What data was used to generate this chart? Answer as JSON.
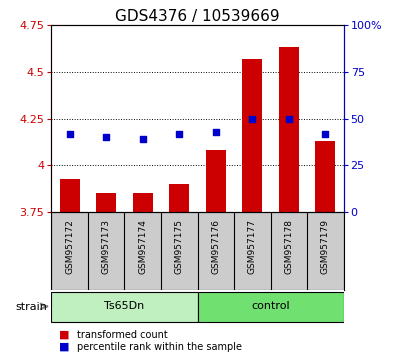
{
  "title": "GDS4376 / 10539669",
  "samples": [
    "GSM957172",
    "GSM957173",
    "GSM957174",
    "GSM957175",
    "GSM957176",
    "GSM957177",
    "GSM957178",
    "GSM957179"
  ],
  "bar_values": [
    3.93,
    3.855,
    3.855,
    3.9,
    4.08,
    4.57,
    4.63,
    4.13
  ],
  "percentile_values": [
    42,
    40,
    39,
    42,
    43,
    50,
    50,
    42
  ],
  "ylim_left": [
    3.75,
    4.75
  ],
  "ylim_right": [
    0,
    100
  ],
  "yticks_left": [
    3.75,
    4.0,
    4.25,
    4.5,
    4.75
  ],
  "ytick_labels_left": [
    "3.75",
    "4",
    "4.25",
    "4.5",
    "4.75"
  ],
  "yticks_right": [
    0,
    25,
    50,
    75,
    100
  ],
  "ytick_labels_right": [
    "0",
    "25",
    "50",
    "75",
    "100%"
  ],
  "groups": [
    {
      "label": "Ts65Dn",
      "start": 0,
      "end": 4,
      "color": "#c0f0c0"
    },
    {
      "label": "control",
      "start": 4,
      "end": 8,
      "color": "#70e070"
    }
  ],
  "bar_color": "#cc0000",
  "percentile_color": "#0000cc",
  "bar_width": 0.55,
  "bg_color": "#cccccc",
  "plot_bg": "#ffffff",
  "legend_bar_label": "transformed count",
  "legend_pct_label": "percentile rank within the sample",
  "strain_label": "strain",
  "title_fontsize": 11,
  "tick_fontsize": 8,
  "sample_fontsize": 6.5
}
